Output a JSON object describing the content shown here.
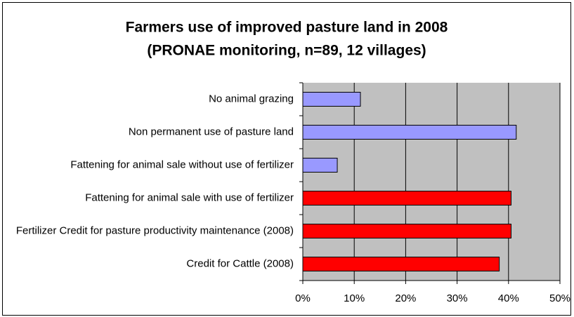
{
  "chart_data": {
    "type": "bar",
    "orientation": "horizontal",
    "title": [
      "Farmers use of improved pasture land in 2008",
      "(PRONAE monitoring, n=89, 12 villages)"
    ],
    "categories": [
      "No animal grazing",
      "Non permanent use of pasture land",
      "Fattening for animal sale without use of fertilizer",
      "Fattening for animal sale with use of fertilizer",
      "Fertilizer Credit for pasture productivity maintenance (2008)",
      "Credit for Cattle (2008)"
    ],
    "values": [
      11.2,
      41.5,
      6.7,
      40.5,
      40.5,
      38.2
    ],
    "colors": [
      "#9999ff",
      "#9999ff",
      "#9999ff",
      "#ff0000",
      "#ff0000",
      "#ff0000"
    ],
    "xlim": [
      0,
      50
    ],
    "xticks": [
      {
        "value": 0,
        "label": "0%"
      },
      {
        "value": 10,
        "label": "10%"
      },
      {
        "value": 20,
        "label": "20%"
      },
      {
        "value": 30,
        "label": "30%"
      },
      {
        "value": 40,
        "label": "40%"
      },
      {
        "value": 50,
        "label": "50%"
      }
    ],
    "grid": true
  }
}
